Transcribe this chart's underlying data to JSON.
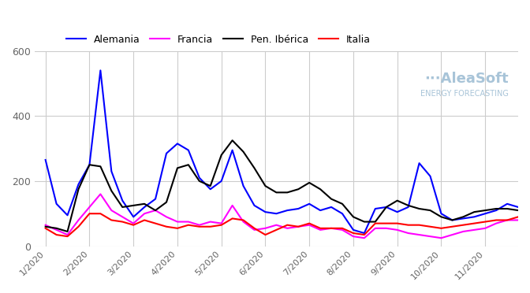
{
  "title": "",
  "series": {
    "Alemania": {
      "color": "#0000ff",
      "values": [
        265,
        130,
        95,
        190,
        250,
        540,
        230,
        140,
        90,
        120,
        145,
        285,
        315,
        295,
        210,
        175,
        200,
        295,
        185,
        125,
        105,
        100,
        110,
        115,
        130,
        110,
        120,
        100,
        50,
        40,
        115,
        120,
        105,
        120,
        255,
        215,
        100,
        80,
        85,
        90,
        100,
        110,
        130,
        120
      ]
    },
    "Francia": {
      "color": "#ff00ff",
      "values": [
        65,
        50,
        35,
        80,
        120,
        160,
        110,
        90,
        70,
        100,
        110,
        90,
        75,
        75,
        65,
        75,
        70,
        125,
        75,
        50,
        55,
        65,
        55,
        60,
        65,
        50,
        55,
        50,
        30,
        25,
        55,
        55,
        50,
        40,
        35,
        30,
        25,
        35,
        45,
        50,
        55,
        70,
        80,
        80
      ]
    },
    "Pen. Ibérica": {
      "color": "#000000",
      "values": [
        60,
        55,
        45,
        175,
        250,
        245,
        170,
        120,
        125,
        130,
        110,
        135,
        240,
        250,
        200,
        185,
        280,
        325,
        290,
        240,
        185,
        165,
        165,
        175,
        195,
        175,
        145,
        130,
        90,
        75,
        75,
        120,
        140,
        125,
        115,
        110,
        90,
        80,
        90,
        105,
        110,
        115,
        115,
        110
      ]
    },
    "Italia": {
      "color": "#ff0000",
      "values": [
        55,
        35,
        30,
        60,
        100,
        100,
        80,
        75,
        65,
        80,
        70,
        60,
        55,
        65,
        60,
        60,
        65,
        85,
        80,
        55,
        35,
        50,
        65,
        60,
        70,
        55,
        55,
        55,
        40,
        35,
        70,
        70,
        70,
        65,
        65,
        60,
        55,
        60,
        65,
        70,
        75,
        80,
        80,
        90
      ]
    }
  },
  "x_tick_labels": [
    "1/2020",
    "2/2020",
    "3/2020",
    "4/2020",
    "5/2020",
    "6/2020",
    "7/2020",
    "8/2020",
    "9/2020",
    "10/2020",
    "11/2020"
  ],
  "x_tick_positions": [
    0,
    4,
    8,
    12,
    16,
    20,
    24,
    28,
    32,
    36,
    40
  ],
  "ylim": [
    0,
    600
  ],
  "yticks": [
    0,
    200,
    400,
    600
  ],
  "background_color": "#ffffff",
  "grid_color": "#cccccc",
  "watermark_text": "∙∙∙AleaSoft",
  "watermark_sub": "ENERGY FORECASTING",
  "watermark_color": "#a8c4d8",
  "legend_order": [
    "Alemania",
    "Francia",
    "Pen. Ibérica",
    "Italia"
  ]
}
